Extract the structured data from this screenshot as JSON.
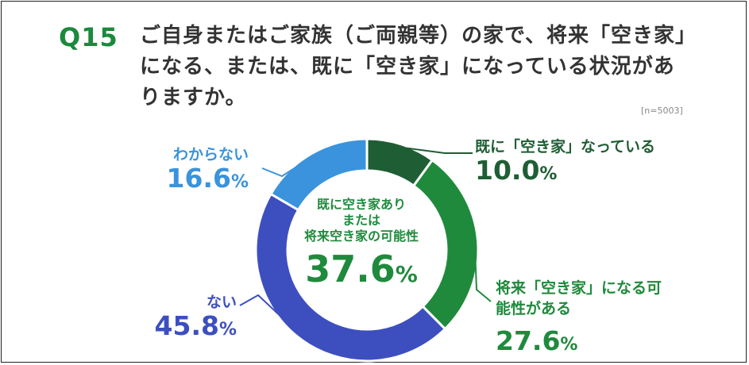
{
  "question": {
    "number": "Q15",
    "text": "ご自身またはご家族（ご両親等）の家で、将来「空き家」になる、または、既に「空き家」になっている状況がありますか。",
    "n": "[n=5003]"
  },
  "chart_data": {
    "type": "pie",
    "categories": [
      "既に「空き家」なっている",
      "将来「空き家」になる可能性がある",
      "ない",
      "わからない"
    ],
    "values": [
      10.0,
      27.6,
      45.8,
      16.6
    ],
    "value_labels": [
      "10.0",
      "27.6",
      "45.8",
      "16.6"
    ],
    "unit": "%",
    "colors": [
      "#1f5e34",
      "#1f8a3c",
      "#3d4fbf",
      "#3a93dc"
    ],
    "donut": true,
    "center": {
      "lines": [
        "既に空き家あり",
        "または",
        "将来空き家の可能性"
      ],
      "value": "37.6",
      "unit": "%"
    }
  }
}
